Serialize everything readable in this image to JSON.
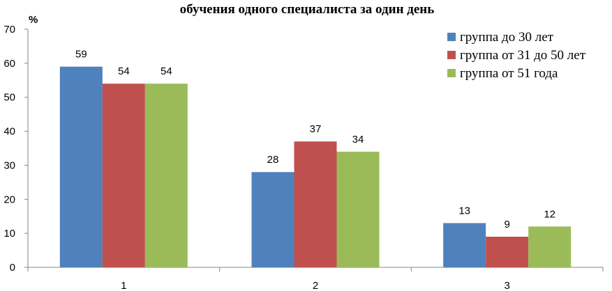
{
  "chart_data": {
    "type": "bar",
    "title": "обучения одного специалиста за один день",
    "ylabel": "%",
    "xlabel": "",
    "categories": [
      "1",
      "2",
      "3"
    ],
    "ylim": [
      0,
      70
    ],
    "yticks": [
      0,
      10,
      20,
      30,
      40,
      50,
      60,
      70
    ],
    "grid": false,
    "legend_position": "top-right",
    "series": [
      {
        "name": "группа до 30 лет",
        "color": "#4f81bd",
        "values": [
          59,
          28,
          13
        ],
        "labels": [
          "59",
          "28",
          "13"
        ]
      },
      {
        "name": "группа от 31 до 50 лет",
        "color": "#c0504d",
        "values": [
          54,
          37,
          9
        ],
        "labels": [
          "54",
          "37",
          "9"
        ]
      },
      {
        "name": "группа от 51 года",
        "color": "#9bbb59",
        "values": [
          54,
          34,
          12
        ],
        "labels": [
          "54",
          "34",
          "12"
        ]
      }
    ]
  }
}
